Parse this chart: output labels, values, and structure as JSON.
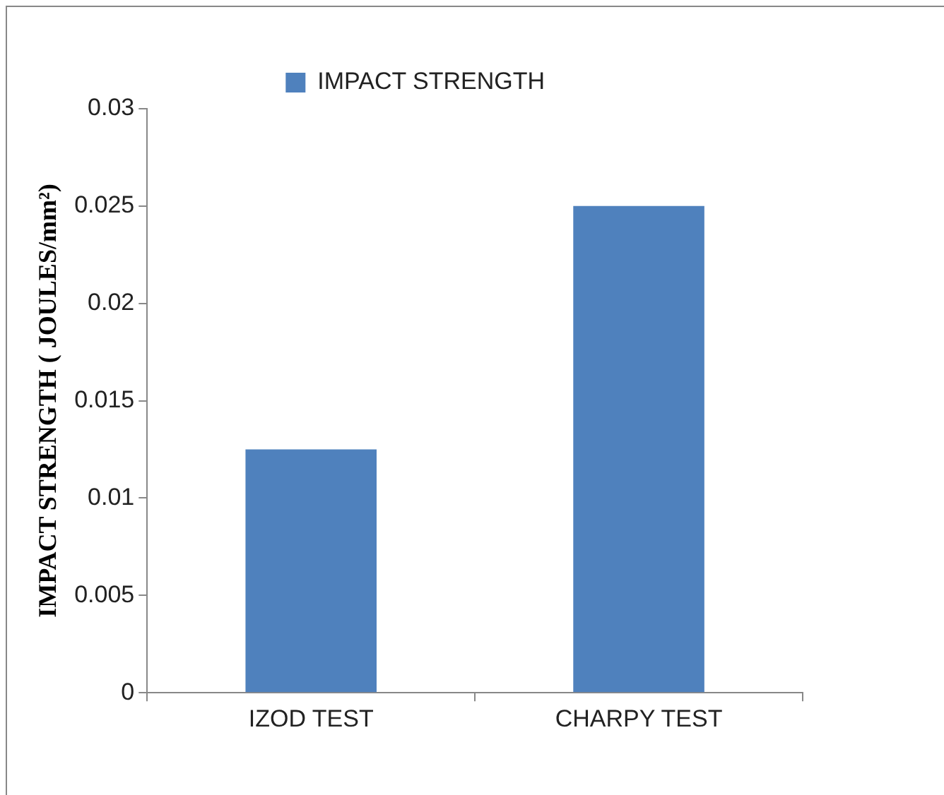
{
  "chart_data": {
    "type": "bar",
    "ylabel": "IMPACT STRENGTH ( JOULES/mm²)",
    "categories": [
      "IZOD TEST",
      "CHARPY TEST"
    ],
    "series": [
      {
        "name": "IMPACT STRENGTH",
        "color": "#4f81bd",
        "values": [
          0.0125,
          0.025
        ]
      }
    ],
    "ylim": [
      0,
      0.03
    ],
    "yticks": [
      0,
      0.005,
      0.01,
      0.015,
      0.02,
      0.025,
      0.03
    ],
    "grid": false,
    "legend": "top"
  }
}
